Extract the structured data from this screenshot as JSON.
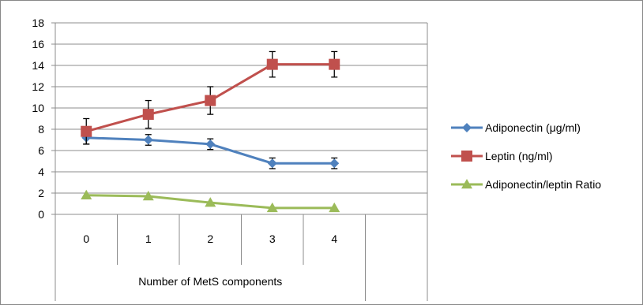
{
  "chart_data": {
    "type": "line",
    "categories": [
      "0",
      "1",
      "2",
      "3",
      "4"
    ],
    "xlabel": "Number of MetS components",
    "ylabel": "",
    "title": "",
    "ylim": [
      0,
      18
    ],
    "yticks": [
      "0",
      "2",
      "4",
      "6",
      "8",
      "10",
      "12",
      "14",
      "16",
      "18"
    ],
    "grid": true,
    "legend_position": "right",
    "series": [
      {
        "name": "Adiponectin (μg/ml)",
        "color": "#4f81bd",
        "marker": "diamond",
        "values": [
          7.2,
          7.0,
          6.6,
          4.8,
          4.8
        ],
        "error": [
          0.6,
          0.5,
          0.5,
          0.5,
          0.5
        ]
      },
      {
        "name": "Leptin (ng/ml)",
        "color": "#c0504d",
        "marker": "square",
        "values": [
          7.8,
          9.4,
          10.7,
          14.1,
          14.1
        ],
        "error": [
          1.2,
          1.3,
          1.3,
          1.2,
          1.2
        ]
      },
      {
        "name": "Adiponectin/leptin Ratio",
        "color": "#9bbb59",
        "marker": "triangle",
        "values": [
          1.8,
          1.7,
          1.1,
          0.6,
          0.6
        ],
        "error": [
          0,
          0,
          0,
          0,
          0
        ]
      }
    ]
  }
}
